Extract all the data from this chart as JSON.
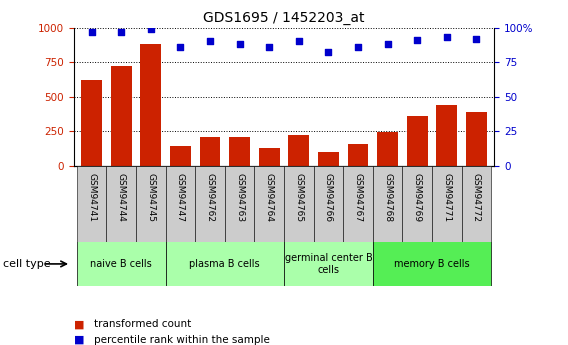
{
  "title": "GDS1695 / 1452203_at",
  "samples": [
    "GSM94741",
    "GSM94744",
    "GSM94745",
    "GSM94747",
    "GSM94762",
    "GSM94763",
    "GSM94764",
    "GSM94765",
    "GSM94766",
    "GSM94767",
    "GSM94768",
    "GSM94769",
    "GSM94771",
    "GSM94772"
  ],
  "transformed_count": [
    620,
    720,
    880,
    140,
    210,
    205,
    125,
    225,
    100,
    160,
    240,
    360,
    440,
    390
  ],
  "percentile_rank": [
    97,
    97,
    99,
    86,
    90,
    88,
    86,
    90,
    82,
    86,
    88,
    91,
    93,
    92
  ],
  "cell_groups": [
    {
      "label": "naive B cells",
      "indices": [
        0,
        1,
        2
      ],
      "color": "#aaffaa"
    },
    {
      "label": "plasma B cells",
      "indices": [
        3,
        4,
        5,
        6
      ],
      "color": "#aaffaa"
    },
    {
      "label": "germinal center B\ncells",
      "indices": [
        7,
        8,
        9
      ],
      "color": "#aaffaa"
    },
    {
      "label": "memory B cells",
      "indices": [
        10,
        11,
        12,
        13
      ],
      "color": "#66ff66"
    }
  ],
  "bar_color": "#cc2200",
  "dot_color": "#0000cc",
  "left_axis_color": "#cc2200",
  "right_axis_color": "#0000cc",
  "ylim_left": [
    0,
    1000
  ],
  "ylim_right": [
    0,
    100
  ],
  "yticks_left": [
    0,
    250,
    500,
    750,
    1000
  ],
  "yticks_right": [
    0,
    25,
    50,
    75,
    100
  ],
  "tick_bg_color": "#cccccc",
  "legend_items": [
    {
      "label": "transformed count",
      "color": "#cc2200"
    },
    {
      "label": "percentile rank within the sample",
      "color": "#0000cc"
    }
  ],
  "cell_type_label": "cell type"
}
